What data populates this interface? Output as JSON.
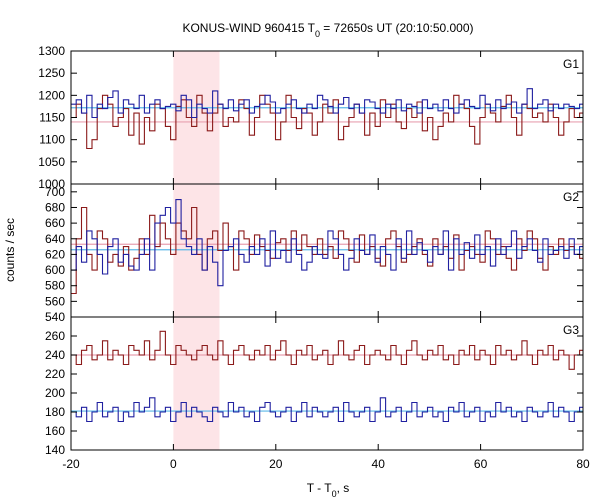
{
  "chart_data": {
    "type": "line",
    "title_main": "KONUS-WIND 960415 T",
    "title_sub": "0",
    "title_rest": " = 72650s UT (20:10:50.000)",
    "xlabel_main": "T - T",
    "xlabel_sub": "0",
    "xlabel_rest": ", s",
    "ylabel": "counts / sec",
    "xlim": [
      -20,
      80
    ],
    "x_ticks": [
      "-20",
      "0",
      "20",
      "40",
      "60",
      "80"
    ],
    "x_tick_values": [
      -20,
      0,
      20,
      40,
      60,
      80
    ],
    "highlight_interval": [
      0,
      9
    ],
    "bin_edges_start": -20,
    "bin_width": 1.024,
    "colors": {
      "red_series": "#8b1a1a",
      "blue_series": "#2020a0",
      "red_bg": "#e8a0b0",
      "blue_bg": "#5bb8e8",
      "highlight": "#fde4e7",
      "axis": "#000000"
    },
    "panels": [
      {
        "label": "G1",
        "ylim": [
          1000,
          1300
        ],
        "y_ticks": [
          "1000",
          "1050",
          "1100",
          "1150",
          "1200",
          "1250",
          "1300"
        ],
        "y_tick_values": [
          1000,
          1050,
          1100,
          1150,
          1200,
          1250,
          1300
        ],
        "background": [
          {
            "name": "",
            "color": "red_bg",
            "value": 1140
          },
          {
            "name": "",
            "color": "blue_bg",
            "value": 1172
          }
        ],
        "series": [
          {
            "color": "red_series",
            "values": [
              1150,
              1180,
              1160,
              1080,
              1100,
              1170,
              1200,
              1180,
              1130,
              1150,
              1170,
              1110,
              1160,
              1090,
              1150,
              1120,
              1180,
              1170,
              1130,
              1100,
              1175,
              1190,
              1150,
              1130,
              1200,
              1160,
              1120,
              1160,
              1180,
              1130,
              1150,
              1140,
              1190,
              1170,
              1110,
              1150,
              1200,
              1180,
              1160,
              1100,
              1140,
              1200,
              1150,
              1125,
              1170,
              1160,
              1110,
              1140,
              1180,
              1160,
              1190,
              1100,
              1130,
              1150,
              1180,
              1160,
              1110,
              1160,
              1130,
              1190,
              1150,
              1180,
              1140,
              1125,
              1170,
              1150,
              1185,
              1120,
              1150,
              1100,
              1130,
              1160,
              1140,
              1200,
              1180,
              1170,
              1130,
              1090,
              1150,
              1180,
              1160,
              1140,
              1175,
              1200,
              1150,
              1110,
              1180,
              1170,
              1150,
              1160,
              1140,
              1180,
              1150,
              1110,
              1140,
              1170,
              1150,
              1160
            ]
          },
          {
            "color": "blue_series",
            "values": [
              1180,
              1190,
              1160,
              1200,
              1150,
              1180,
              1170,
              1195,
              1210,
              1160,
              1190,
              1180,
              1170,
              1200,
              1160,
              1180,
              1190,
              1170,
              1175,
              1180,
              1165,
              1200,
              1190,
              1150,
              1180,
              1170,
              1160,
              1210,
              1180,
              1170,
              1190,
              1165,
              1180,
              1190,
              1160,
              1175,
              1180,
              1200,
              1185,
              1160,
              1170,
              1180,
              1190,
              1170,
              1160,
              1180,
              1170,
              1200,
              1190,
              1175,
              1160,
              1180,
              1195,
              1170,
              1180,
              1160,
              1190,
              1185,
              1170,
              1160,
              1180,
              1170,
              1190,
              1165,
              1180,
              1175,
              1160,
              1190,
              1170,
              1180,
              1165,
              1190,
              1170,
              1160,
              1180,
              1190,
              1175,
              1170,
              1200,
              1180,
              1165,
              1190,
              1170,
              1180,
              1185,
              1160,
              1180,
              1215,
              1170,
              1180,
              1190,
              1165,
              1180,
              1170,
              1180,
              1175,
              1170,
              1180
            ]
          }
        ]
      },
      {
        "label": "G2",
        "ylim": [
          540,
          710
        ],
        "y_ticks": [
          "540",
          "560",
          "580",
          "600",
          "620",
          "640",
          "660",
          "680",
          "700"
        ],
        "y_tick_values": [
          540,
          560,
          580,
          600,
          620,
          640,
          660,
          680,
          700
        ],
        "background": [
          {
            "name": "",
            "color": "red_bg",
            "value": 633
          },
          {
            "name": "",
            "color": "blue_bg",
            "value": 626
          }
        ],
        "series": [
          {
            "color": "red_series",
            "values": [
              570,
              640,
              680,
              620,
              600,
              650,
              640,
              610,
              620,
              605,
              630,
              600,
              615,
              640,
              620,
              670,
              630,
              660,
              640,
              620,
              660,
              650,
              640,
              680,
              620,
              600,
              640,
              650,
              625,
              660,
              630,
              600,
              650,
              640,
              620,
              645,
              630,
              625,
              615,
              635,
              640,
              625,
              650,
              625,
              645,
              630,
              620,
              640,
              620,
              630,
              615,
              650,
              640,
              625,
              610,
              645,
              620,
              630,
              615,
              605,
              640,
              650,
              630,
              610,
              620,
              630,
              640,
              620,
              605,
              640,
              620,
              630,
              615,
              645,
              600,
              625,
              630,
              620,
              610,
              650,
              640,
              620,
              630,
              615,
              600,
              640,
              625,
              650,
              640,
              615,
              600,
              630,
              620,
              640,
              625,
              630,
              620,
              615
            ]
          },
          {
            "color": "blue_series",
            "values": [
              600,
              630,
              610,
              650,
              640,
              620,
              595,
              630,
              640,
              610,
              620,
              605,
              600,
              620,
              640,
              600,
              660,
              670,
              680,
              660,
              690,
              640,
              630,
              620,
              640,
              600,
              630,
              610,
              580,
              625,
              630,
              640,
              620,
              610,
              630,
              620,
              640,
              605,
              650,
              615,
              625,
              610,
              640,
              620,
              600,
              610,
              630,
              620,
              615,
              650,
              640,
              620,
              600,
              615,
              640,
              625,
              620,
              645,
              610,
              630,
              620,
              600,
              640,
              615,
              650,
              620,
              635,
              625,
              610,
              630,
              620,
              650,
              600,
              640,
              620,
              635,
              615,
              645,
              620,
              630,
              605,
              640,
              620,
              630,
              650,
              615,
              630,
              640,
              625,
              610,
              640,
              620,
              625,
              630,
              615,
              640,
              620,
              630
            ]
          }
        ]
      },
      {
        "label": "G3",
        "ylim": [
          140,
          280
        ],
        "y_ticks": [
          "140",
          "160",
          "180",
          "200",
          "220",
          "240",
          "260"
        ],
        "y_tick_values": [
          140,
          160,
          180,
          200,
          220,
          240,
          260
        ],
        "background": [
          {
            "name": "",
            "color": "red_bg",
            "value": 240
          },
          {
            "name": "",
            "color": "blue_bg",
            "value": 181
          }
        ],
        "series": [
          {
            "color": "red_series",
            "values": [
              240,
              230,
              245,
              250,
              235,
              240,
              255,
              235,
              245,
              240,
              230,
              250,
              245,
              240,
              255,
              235,
              245,
              265,
              240,
              230,
              250,
              245,
              240,
              235,
              245,
              250,
              240,
              235,
              255,
              240,
              230,
              245,
              250,
              240,
              235,
              245,
              240,
              250,
              235,
              245,
              255,
              240,
              230,
              245,
              240,
              250,
              235,
              240,
              245,
              230,
              240,
              255,
              240,
              235,
              245,
              250,
              230,
              240,
              245,
              240,
              235,
              250,
              240,
              230,
              245,
              255,
              240,
              235,
              245,
              240,
              250,
              235,
              240,
              230,
              245,
              240,
              250,
              235,
              245,
              240,
              230,
              250,
              240,
              245,
              235,
              240,
              255,
              240,
              230,
              245,
              240,
              250,
              235,
              245,
              240,
              225,
              240,
              245
            ]
          },
          {
            "color": "blue_series",
            "values": [
              180,
              175,
              185,
              170,
              180,
              190,
              175,
              180,
              185,
              170,
              180,
              175,
              190,
              180,
              185,
              195,
              175,
              180,
              185,
              170,
              180,
              190,
              175,
              185,
              180,
              175,
              170,
              185,
              180,
              175,
              190,
              180,
              185,
              175,
              180,
              170,
              185,
              190,
              180,
              175,
              180,
              185,
              170,
              180,
              190,
              175,
              185,
              180,
              175,
              180,
              185,
              170,
              190,
              180,
              175,
              180,
              185,
              170,
              180,
              195,
              175,
              180,
              185,
              170,
              180,
              190,
              175,
              180,
              185,
              175,
              180,
              170,
              185,
              180,
              190,
              175,
              180,
              185,
              170,
              180,
              175,
              190,
              180,
              185,
              175,
              180,
              170,
              185,
              180,
              175,
              180,
              190,
              175,
              185,
              180,
              170,
              180,
              185
            ]
          }
        ]
      }
    ]
  }
}
